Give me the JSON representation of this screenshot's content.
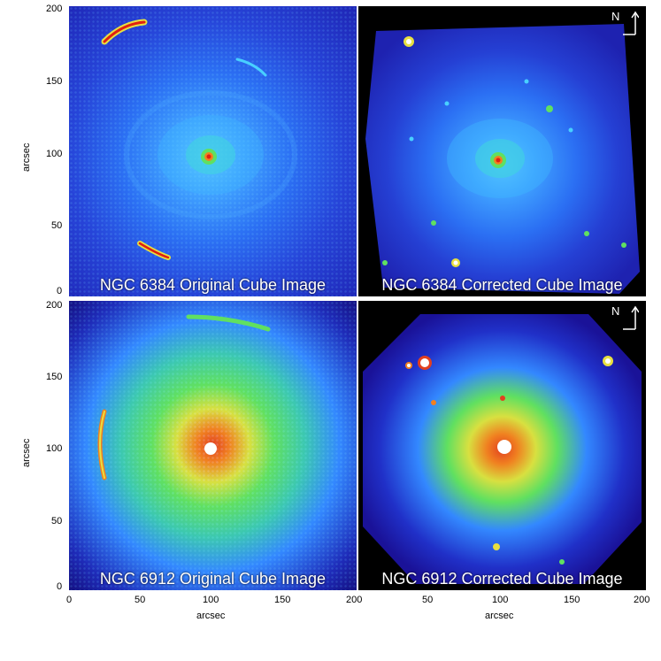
{
  "panels": {
    "top_left": {
      "caption": "NGC 6384 Original Cube Image"
    },
    "top_right": {
      "caption": "NGC 6384 Corrected Cube Image",
      "north_label": "N"
    },
    "bottom_left": {
      "caption": "NGC 6912 Original Cube Image"
    },
    "bottom_right": {
      "caption": "NGC 6912 Corrected Cube Image",
      "north_label": "N"
    }
  },
  "axes": {
    "x_label": "arcsec",
    "y_label": "arcsec",
    "top_y_ticks": [
      "200",
      "150",
      "100",
      "50",
      "0"
    ],
    "bottom_y_ticks": [
      "200",
      "150",
      "100",
      "50",
      "0"
    ],
    "left_x_ticks": [
      "0",
      "50",
      "100",
      "150",
      "200"
    ],
    "right_x_ticks": [
      "50",
      "100",
      "150",
      "200"
    ]
  },
  "colors": {
    "colormap": [
      "#000000",
      "#1a1298",
      "#2438cf",
      "#2a6cf0",
      "#48b0ff",
      "#3fe0d0",
      "#60e060",
      "#e8e040",
      "#f08020",
      "#e02010",
      "#ffffff"
    ]
  }
}
